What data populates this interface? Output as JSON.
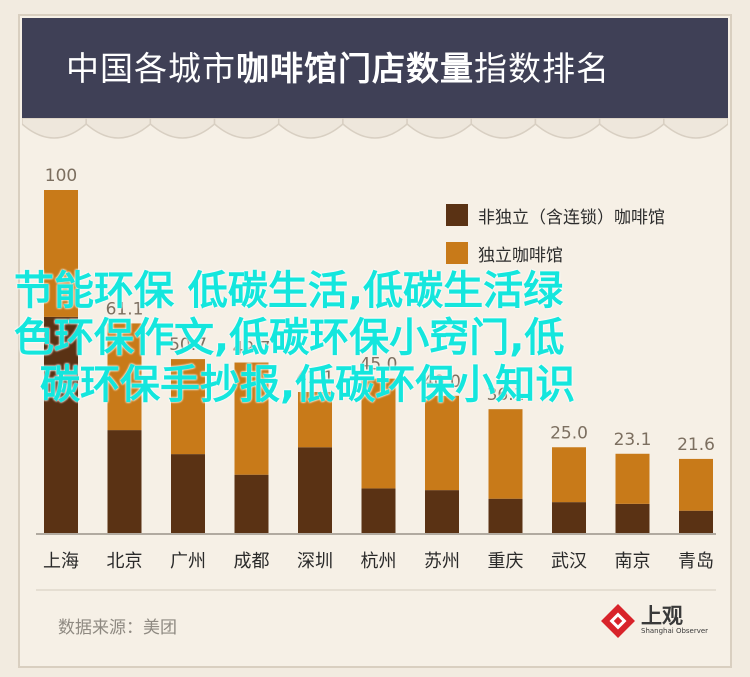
{
  "title": {
    "regular": "中国各城市",
    "bold": "咖啡馆门店数量",
    "suffix": "指数排名"
  },
  "legend": [
    {
      "label": "非独立（含连锁）咖啡馆",
      "color": "#5a3214"
    },
    {
      "label": "独立咖啡馆",
      "color": "#c87a19"
    }
  ],
  "source": "数据来源：美团",
  "logo": {
    "cn": "上观",
    "en": "Shanghai Observer",
    "color": "#d8232a"
  },
  "overlay_text": [
    "节能环保 低碳生活,低碳生活绿",
    "色环保作文,低碳环保小窍门,低",
    "碳环保手抄报,低碳环保小知识"
  ],
  "chart_data": {
    "type": "bar",
    "stacked": true,
    "categories": [
      "上海",
      "北京",
      "广州",
      "成都",
      "深圳",
      "杭州",
      "苏州",
      "重庆",
      "武汉",
      "南京",
      "青岛"
    ],
    "series": [
      {
        "name": "非独立（含连锁）咖啡馆",
        "values": [
          63.0,
          30.0,
          23.0,
          17.0,
          25.0,
          13.0,
          12.5,
          10.0,
          9.0,
          8.5,
          6.5
        ],
        "color": "#5a3214"
      },
      {
        "name": "独立咖啡馆",
        "values": [
          37.0,
          31.1,
          27.7,
          32.7,
          16.1,
          32.0,
          27.5,
          26.1,
          16.0,
          14.6,
          15.1
        ],
        "color": "#c87a19"
      }
    ],
    "totals": [
      "100",
      "61.1",
      "50.7",
      "49.7",
      "41.1",
      "45.0",
      "40.0",
      "36.1",
      "25.0",
      "23.1",
      "21.6"
    ],
    "ylim": [
      0,
      100
    ],
    "grid": false,
    "legend_position": "top-right"
  }
}
